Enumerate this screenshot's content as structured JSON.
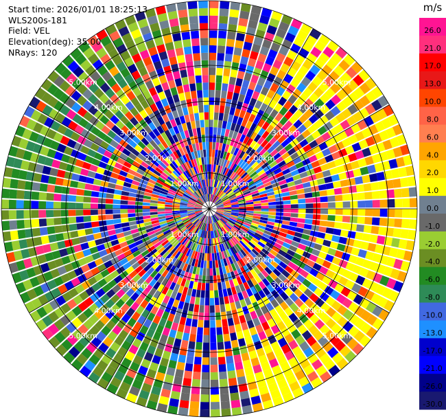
{
  "info": {
    "start_time": "Start time: 2026/01/01 18:25:13",
    "instrument": "WLS200s-181",
    "field": "Field: VEL",
    "elevation": "Elevation(deg): 35.00",
    "nrays": "NRays: 120"
  },
  "chart_data": {
    "type": "heatmap",
    "projection": "polar-ppi",
    "field": "VEL",
    "n_rays": 120,
    "n_gates": 28,
    "max_range_km": 5.8,
    "range_rings_km": [
      1.0,
      2.0,
      3.0,
      4.0,
      5.0
    ],
    "ring_labels": [
      "1.00km",
      "2.00km",
      "3.00km",
      "4.00km",
      "5.00km"
    ],
    "azimuth_lines_deg": [
      0,
      30,
      60,
      90,
      120,
      150,
      180,
      210,
      240,
      270,
      300,
      330
    ],
    "grid": true,
    "colorbar": {
      "unit": "m/s",
      "position": "right",
      "ticks": [
        "26.0",
        "21.0",
        "17.0",
        "13.0",
        "10.0",
        "8.0",
        "6.0",
        "4.0",
        "2.0",
        "1.0",
        "0.0",
        "-1.0",
        "-2.0",
        "-4.0",
        "-6.0",
        "-8.0",
        "-10.0",
        "-13.0",
        "-17.0",
        "-21.0",
        "-26.0",
        "-30.0"
      ],
      "colors": [
        "#ff1493",
        "#ff2f7d",
        "#ff0000",
        "#e81818",
        "#ff4500",
        "#ff6347",
        "#ff7f50",
        "#ffa500",
        "#ffd700",
        "#ffff00",
        "#708090",
        "#696969",
        "#9acd32",
        "#6b8e23",
        "#228b22",
        "#2e8b57",
        "#4169e1",
        "#1e90ff",
        "#0000cd",
        "#0000ff",
        "#00008b",
        "#191970"
      ]
    }
  }
}
